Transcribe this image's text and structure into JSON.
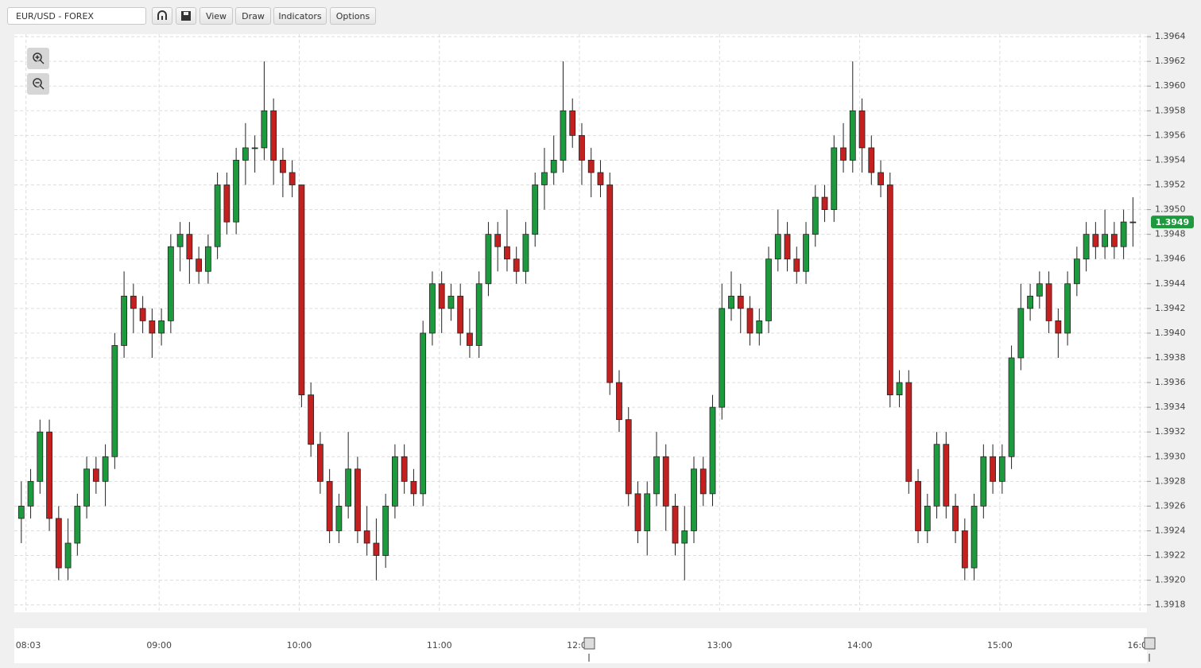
{
  "toolbar": {
    "symbol": "EUR/USD - FOREX",
    "buttons": [
      "View",
      "Draw",
      "Indicators",
      "Options"
    ]
  },
  "chart_data": {
    "type": "candlestick",
    "x": [
      "08:01",
      "08:05",
      "08:09",
      "08:13",
      "08:17",
      "08:21",
      "08:25",
      "08:29",
      "08:33",
      "08:37",
      "08:41",
      "08:45",
      "08:49",
      "08:53",
      "08:57",
      "09:01",
      "09:05",
      "09:09",
      "09:13",
      "09:17",
      "09:21",
      "09:25",
      "09:29",
      "09:33",
      "09:37",
      "09:41",
      "09:45",
      "09:49",
      "09:53",
      "09:57",
      "10:01",
      "10:05",
      "10:09",
      "10:13",
      "10:17",
      "10:21",
      "10:25",
      "10:29",
      "10:33",
      "10:37",
      "10:41",
      "10:45",
      "10:49",
      "10:53",
      "10:57",
      "11:01",
      "11:05",
      "11:09",
      "11:13",
      "11:17",
      "11:21",
      "11:25",
      "11:29",
      "11:33",
      "11:37",
      "11:41",
      "11:45",
      "11:49",
      "11:53",
      "11:57",
      "12:01",
      "12:05",
      "12:09",
      "12:13",
      "12:17",
      "12:21",
      "12:25",
      "12:29",
      "12:33",
      "12:37",
      "12:41",
      "12:45",
      "12:49",
      "12:53",
      "12:57",
      "13:01",
      "13:05",
      "13:09",
      "13:13",
      "13:17",
      "13:21",
      "13:25",
      "13:29",
      "13:33",
      "13:37",
      "13:41",
      "13:45",
      "13:49",
      "13:53",
      "13:57",
      "14:01",
      "14:05",
      "14:09",
      "14:13",
      "14:17",
      "14:21",
      "14:25",
      "14:29",
      "14:33",
      "14:37",
      "14:41",
      "14:45",
      "14:49",
      "14:53",
      "14:57",
      "15:01",
      "15:05",
      "15:09",
      "15:13",
      "15:17",
      "15:21",
      "15:25",
      "15:29",
      "15:33",
      "15:37",
      "15:41",
      "15:45",
      "15:49",
      "15:53",
      "15:57"
    ],
    "open": [
      1.3925,
      1.3926,
      1.3928,
      1.3932,
      1.3925,
      1.3921,
      1.3923,
      1.3926,
      1.3929,
      1.3928,
      1.393,
      1.3939,
      1.3943,
      1.3942,
      1.3941,
      1.394,
      1.3941,
      1.3947,
      1.3948,
      1.3946,
      1.3945,
      1.3947,
      1.3952,
      1.3949,
      1.3954,
      1.3955,
      1.3955,
      1.3958,
      1.3954,
      1.3953,
      1.3952,
      1.3935,
      1.3931,
      1.3928,
      1.3924,
      1.3926,
      1.3929,
      1.3924,
      1.3923,
      1.3922,
      1.3926,
      1.393,
      1.3928,
      1.3927,
      1.394,
      1.3944,
      1.3942,
      1.3943,
      1.394,
      1.3939,
      1.3944,
      1.3948,
      1.3947,
      1.3946,
      1.3945,
      1.3948,
      1.3952,
      1.3953,
      1.3954,
      1.3958,
      1.3956,
      1.3954,
      1.3953,
      1.3952,
      1.3936,
      1.3933,
      1.3927,
      1.3924,
      1.3927,
      1.393,
      1.3926,
      1.3923,
      1.3924,
      1.3929,
      1.3927,
      1.3934,
      1.3942,
      1.3943,
      1.3942,
      1.394,
      1.3941,
      1.3946,
      1.3948,
      1.3946,
      1.3945,
      1.3948,
      1.3951,
      1.395,
      1.3955,
      1.3954,
      1.3958,
      1.3955,
      1.3953,
      1.3952,
      1.3935,
      1.3936,
      1.3928,
      1.3924,
      1.3926,
      1.3931,
      1.3926,
      1.3924,
      1.3921,
      1.3926,
      1.393,
      1.3928,
      1.393,
      1.3938,
      1.3942,
      1.3943,
      1.3944,
      1.3941,
      1.394,
      1.3944,
      1.3946,
      1.3948,
      1.3947,
      1.3948,
      1.3947,
      1.3949
    ],
    "high": [
      1.3928,
      1.3929,
      1.3933,
      1.3933,
      1.3926,
      1.3925,
      1.3927,
      1.393,
      1.393,
      1.3931,
      1.394,
      1.3945,
      1.3944,
      1.3943,
      1.3942,
      1.3942,
      1.3948,
      1.3949,
      1.3949,
      1.3947,
      1.3948,
      1.3953,
      1.3953,
      1.3955,
      1.3957,
      1.3956,
      1.3962,
      1.3959,
      1.3955,
      1.3954,
      1.3952,
      1.3936,
      1.3932,
      1.3929,
      1.3927,
      1.3932,
      1.393,
      1.3926,
      1.3925,
      1.3927,
      1.3931,
      1.3931,
      1.3929,
      1.3941,
      1.3945,
      1.3945,
      1.3944,
      1.3944,
      1.3942,
      1.3945,
      1.3949,
      1.3949,
      1.395,
      1.3947,
      1.3949,
      1.3953,
      1.3955,
      1.3956,
      1.3962,
      1.3959,
      1.3957,
      1.3955,
      1.3954,
      1.3953,
      1.3937,
      1.3934,
      1.3928,
      1.3928,
      1.3932,
      1.3931,
      1.3927,
      1.3926,
      1.393,
      1.393,
      1.3935,
      1.3944,
      1.3945,
      1.3944,
      1.3943,
      1.3942,
      1.3947,
      1.395,
      1.3949,
      1.3947,
      1.3949,
      1.3952,
      1.3952,
      1.3956,
      1.3957,
      1.3962,
      1.3959,
      1.3956,
      1.3954,
      1.3953,
      1.3937,
      1.3937,
      1.3929,
      1.3927,
      1.3932,
      1.3932,
      1.3927,
      1.3925,
      1.3927,
      1.3931,
      1.3931,
      1.3931,
      1.3939,
      1.3944,
      1.3944,
      1.3945,
      1.3945,
      1.3942,
      1.3945,
      1.3947,
      1.3949,
      1.3949,
      1.395,
      1.3949,
      1.395,
      1.3951
    ],
    "low": [
      1.3923,
      1.3925,
      1.3927,
      1.3924,
      1.392,
      1.392,
      1.3922,
      1.3925,
      1.3927,
      1.3926,
      1.3929,
      1.3938,
      1.394,
      1.394,
      1.3938,
      1.3939,
      1.394,
      1.3945,
      1.3944,
      1.3944,
      1.3944,
      1.3946,
      1.3948,
      1.3948,
      1.3952,
      1.3953,
      1.3954,
      1.3952,
      1.3951,
      1.3951,
      1.3934,
      1.393,
      1.3927,
      1.3923,
      1.3923,
      1.3925,
      1.3923,
      1.3922,
      1.392,
      1.3921,
      1.3925,
      1.3927,
      1.3926,
      1.3926,
      1.3939,
      1.394,
      1.3941,
      1.3939,
      1.3938,
      1.3938,
      1.3943,
      1.3945,
      1.3945,
      1.3944,
      1.3944,
      1.3947,
      1.395,
      1.3952,
      1.3953,
      1.3955,
      1.3952,
      1.3951,
      1.3951,
      1.3935,
      1.3932,
      1.3926,
      1.3923,
      1.3922,
      1.3926,
      1.3924,
      1.3922,
      1.392,
      1.3923,
      1.3926,
      1.3926,
      1.3933,
      1.3941,
      1.394,
      1.3939,
      1.3939,
      1.394,
      1.3945,
      1.3945,
      1.3944,
      1.3944,
      1.3947,
      1.3949,
      1.3949,
      1.3953,
      1.3953,
      1.3953,
      1.3952,
      1.3951,
      1.3934,
      1.3934,
      1.3927,
      1.3923,
      1.3923,
      1.3925,
      1.3925,
      1.3923,
      1.392,
      1.392,
      1.3925,
      1.3927,
      1.3927,
      1.3929,
      1.3937,
      1.3941,
      1.3942,
      1.394,
      1.3938,
      1.3939,
      1.3943,
      1.3945,
      1.3946,
      1.3946,
      1.3946,
      1.3946,
      1.3947
    ],
    "close": [
      1.3926,
      1.3928,
      1.3932,
      1.3925,
      1.3921,
      1.3923,
      1.3926,
      1.3929,
      1.3928,
      1.393,
      1.3939,
      1.3943,
      1.3942,
      1.3941,
      1.394,
      1.3941,
      1.3947,
      1.3948,
      1.3946,
      1.3945,
      1.3947,
      1.3952,
      1.3949,
      1.3954,
      1.3955,
      1.3955,
      1.3958,
      1.3954,
      1.3953,
      1.3952,
      1.3935,
      1.3931,
      1.3928,
      1.3924,
      1.3926,
      1.3929,
      1.3924,
      1.3923,
      1.3922,
      1.3926,
      1.393,
      1.3928,
      1.3927,
      1.394,
      1.3944,
      1.3942,
      1.3943,
      1.394,
      1.3939,
      1.3944,
      1.3948,
      1.3947,
      1.3946,
      1.3945,
      1.3948,
      1.3952,
      1.3953,
      1.3954,
      1.3958,
      1.3956,
      1.3954,
      1.3953,
      1.3952,
      1.3936,
      1.3933,
      1.3927,
      1.3924,
      1.3927,
      1.393,
      1.3926,
      1.3923,
      1.3924,
      1.3929,
      1.3927,
      1.3934,
      1.3942,
      1.3943,
      1.3942,
      1.394,
      1.3941,
      1.3946,
      1.3948,
      1.3946,
      1.3945,
      1.3948,
      1.3951,
      1.395,
      1.3955,
      1.3954,
      1.3958,
      1.3955,
      1.3953,
      1.3952,
      1.3935,
      1.3936,
      1.3928,
      1.3924,
      1.3926,
      1.3931,
      1.3926,
      1.3924,
      1.3921,
      1.3926,
      1.393,
      1.3928,
      1.393,
      1.3938,
      1.3942,
      1.3943,
      1.3944,
      1.3941,
      1.394,
      1.3944,
      1.3946,
      1.3948,
      1.3947,
      1.3948,
      1.3947,
      1.3949,
      1.3949
    ],
    "up_color": "#1e9a3e",
    "down_color": "#c3201f",
    "xlim": [
      "07:58",
      "16:03"
    ],
    "xticks": [
      "08:03",
      "09:00",
      "10:00",
      "11:00",
      "12:00",
      "13:00",
      "14:00",
      "15:00",
      "16:00"
    ],
    "ylim": [
      1.39174,
      1.39642
    ],
    "yticks": [
      1.3918,
      {
        "value": 1.392,
        "label": "1.3920"
      },
      1.3922,
      1.3924,
      1.3926,
      1.3928,
      {
        "value": 1.393,
        "label": "1.3930"
      },
      1.3932,
      1.3934,
      1.3936,
      1.3938,
      {
        "value": 1.394,
        "label": "1.3940"
      },
      1.3942,
      1.3944,
      1.3946,
      1.3948,
      {
        "value": 1.395,
        "label": "1.3950"
      },
      1.3952,
      1.3954,
      1.3956,
      1.3958,
      {
        "value": 1.396,
        "label": "1.3960"
      },
      1.3962,
      1.3964
    ],
    "grid": true,
    "last_price": 1.3949
  }
}
